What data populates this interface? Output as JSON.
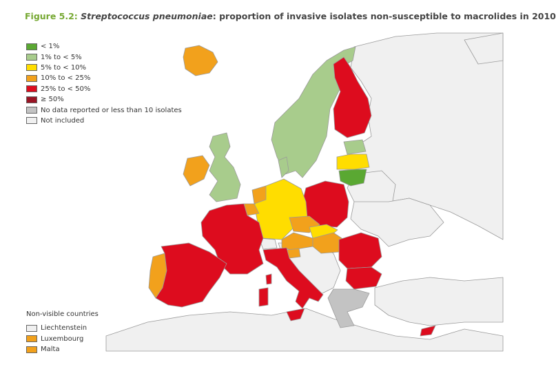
{
  "title": {
    "figure_label": "Figure 5.2:",
    "species": "Streptococcus pneumoniae",
    "text": ": proportion of invasive isolates non-susceptible to macrolides in 2010"
  },
  "colors": {
    "lt1": "#5aa832",
    "1to5": "#a8cc8c",
    "5to10": "#ffdd00",
    "10to25": "#f2a11c",
    "25to50": "#dd0c1e",
    "ge50": "#9a1424",
    "no_data": "#c3c3c3",
    "not_included": "#f0f0f0",
    "sea": "#ffffff",
    "border": "#9a9a9a"
  },
  "legend": [
    {
      "label": "< 1%",
      "color": "#5aa832"
    },
    {
      "label": "1% to < 5%",
      "color": "#a8cc8c"
    },
    {
      "label": "5% to < 10%",
      "color": "#ffdd00"
    },
    {
      "label": "10% to < 25%",
      "color": "#f2a11c"
    },
    {
      "label": "25% to < 50%",
      "color": "#dd0c1e"
    },
    {
      "label": "≥ 50%",
      "color": "#9a1424"
    },
    {
      "label": "No data reported or less than 10 isolates",
      "color": "#c3c3c3"
    },
    {
      "label": "Not included",
      "color": "#f0f0f0"
    }
  ],
  "non_visible": {
    "title": "Non-visible countries",
    "items": [
      {
        "label": "Liechtenstein",
        "color": "#f0f0f0"
      },
      {
        "label": "Luxembourg",
        "color": "#f2a11c"
      },
      {
        "label": "Malta",
        "color": "#f2a11c"
      }
    ]
  },
  "countries": {
    "iceland": "10to25",
    "ireland": "10to25",
    "uk": "1to5",
    "norway_sweden": "1to5",
    "finland": "25to50",
    "estonia": "1to5",
    "latvia": "5to10",
    "lithuania": "lt1",
    "denmark": "1to5",
    "netherlands": "10to25",
    "belgium": "10to25",
    "germany": "5to10",
    "poland": "25to50",
    "czech_republic": "10to25",
    "slovakia": "5to10",
    "austria": "10to25",
    "hungary": "10to25",
    "slovenia": "10to25",
    "france": "25to50",
    "spain": "25to50",
    "portugal": "10to25",
    "italy": "25to50",
    "sardinia": "25to50",
    "corsica": "25to50",
    "sicily": "25to50",
    "romania": "25to50",
    "bulgaria": "25to50",
    "greece": "no_data",
    "cyprus": "25to50"
  }
}
